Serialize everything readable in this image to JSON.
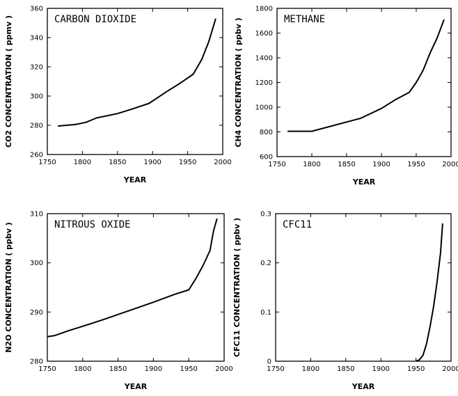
{
  "chart_data": [
    {
      "type": "line",
      "title": "CARBON DIOXIDE",
      "xlabel": "YEAR",
      "ylabel": "CO2 CONCENTRATION ( ppmv )",
      "xlim": [
        1750,
        2000
      ],
      "ylim": [
        260,
        360
      ],
      "xticks": [
        1750,
        1800,
        1850,
        1900,
        1950,
        2000
      ],
      "yticks": [
        260,
        280,
        300,
        320,
        340,
        360
      ],
      "legend": "none",
      "grid": false,
      "x": [
        1765,
        1790,
        1805,
        1820,
        1850,
        1870,
        1895,
        1920,
        1940,
        1958,
        1970,
        1980,
        1990
      ],
      "y": [
        279.5,
        280.5,
        282,
        285,
        288,
        291,
        295,
        303,
        309,
        315,
        325,
        337,
        353
      ]
    },
    {
      "type": "line",
      "title": "METHANE",
      "xlabel": "YEAR",
      "ylabel": "CH4 CONCENTRATION ( ppbv )",
      "xlim": [
        1750,
        2000
      ],
      "ylim": [
        600,
        1800
      ],
      "xticks": [
        1750,
        1800,
        1850,
        1900,
        1950,
        2000
      ],
      "yticks": [
        600,
        800,
        1000,
        1200,
        1400,
        1600,
        1800
      ],
      "legend": "none",
      "grid": false,
      "x": [
        1765,
        1800,
        1830,
        1870,
        1900,
        1920,
        1940,
        1950,
        1960,
        1970,
        1980,
        1990
      ],
      "y": [
        805,
        805,
        850,
        910,
        990,
        1060,
        1120,
        1200,
        1300,
        1440,
        1560,
        1710
      ]
    },
    {
      "type": "line",
      "title": "NITROUS OXIDE",
      "xlabel": "YEAR",
      "ylabel": "N2O CONCENTRATION ( ppbv )",
      "xlim": [
        1750,
        2000
      ],
      "ylim": [
        280,
        310
      ],
      "xticks": [
        1750,
        1800,
        1850,
        1900,
        1950,
        2000
      ],
      "yticks": [
        280,
        290,
        300,
        310
      ],
      "legend": "none",
      "grid": false,
      "x": [
        1750,
        1760,
        1780,
        1800,
        1830,
        1860,
        1880,
        1900,
        1930,
        1950,
        1960,
        1970,
        1980,
        1985,
        1990
      ],
      "y": [
        285,
        285.2,
        286.2,
        287.1,
        288.5,
        290,
        291,
        292,
        293.6,
        294.5,
        296.8,
        299.4,
        302.5,
        306.5,
        309
      ]
    },
    {
      "type": "line",
      "title": "CFC11",
      "xlabel": "YEAR",
      "ylabel": "CFC11 CONCENTRATION ( ppbv )",
      "xlim": [
        1750,
        2000
      ],
      "ylim": [
        0,
        0.3
      ],
      "xticks": [
        1750,
        1800,
        1850,
        1900,
        1950,
        2000
      ],
      "yticks": [
        0,
        0.1,
        0.2,
        0.3
      ],
      "legend": "none",
      "grid": false,
      "x": [
        1950,
        1955,
        1960,
        1965,
        1970,
        1975,
        1980,
        1985,
        1988
      ],
      "y": [
        0,
        0.003,
        0.012,
        0.035,
        0.07,
        0.11,
        0.16,
        0.22,
        0.28
      ]
    }
  ]
}
